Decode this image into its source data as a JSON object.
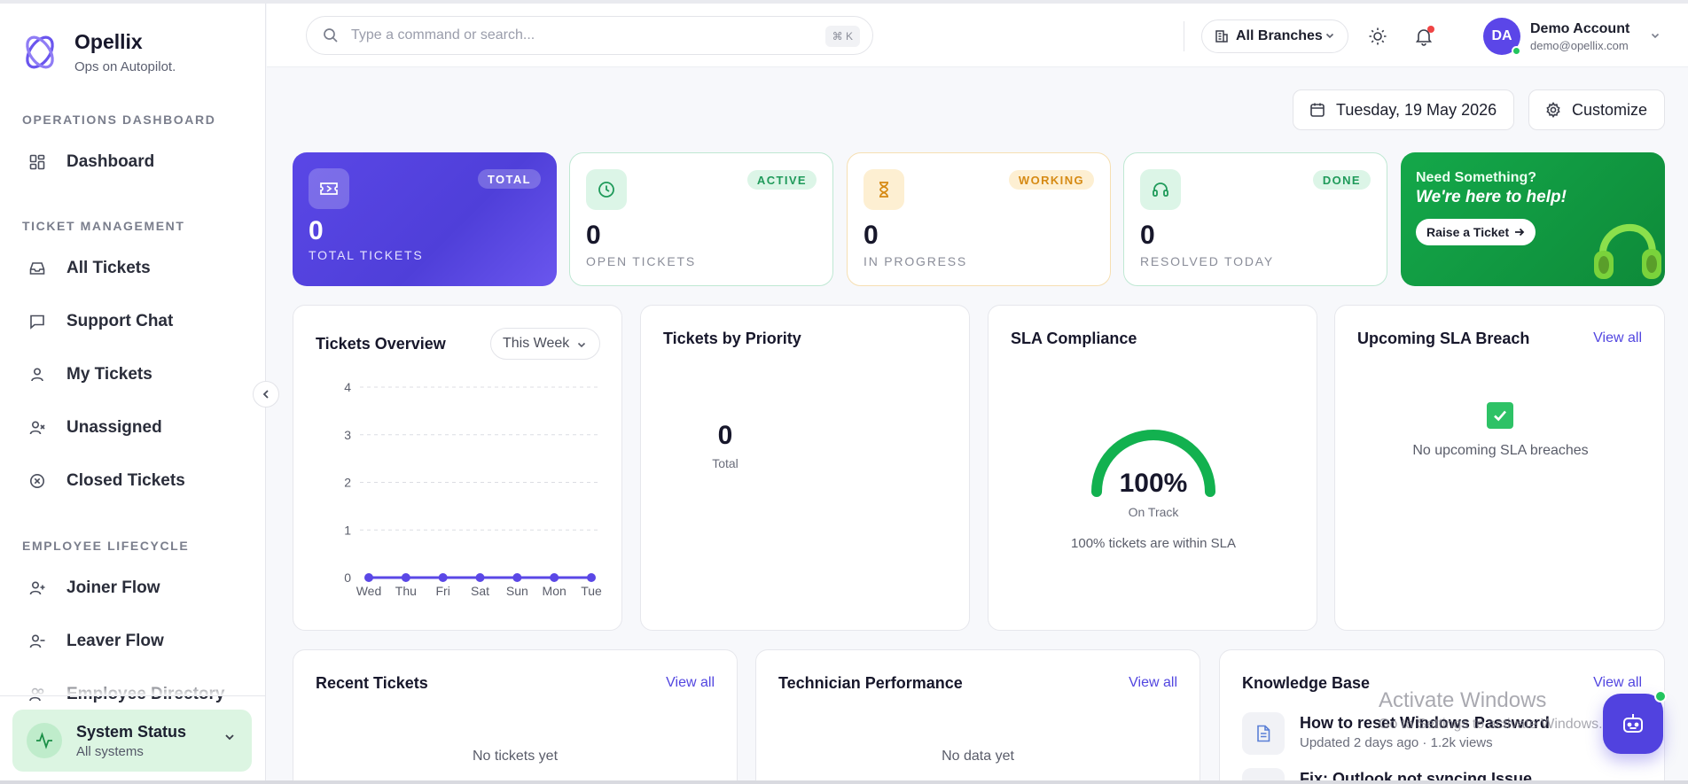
{
  "brand": {
    "name": "Opellix",
    "tagline": "Ops on Autopilot."
  },
  "sidebar": {
    "sections": [
      {
        "title": "OPERATIONS DASHBOARD"
      },
      {
        "title": "TICKET MANAGEMENT"
      },
      {
        "title": "EMPLOYEE LIFECYCLE"
      }
    ],
    "items": [
      {
        "label": "Dashboard",
        "icon": "grid-icon"
      },
      {
        "label": "All Tickets",
        "icon": "inbox-icon"
      },
      {
        "label": "Support Chat",
        "icon": "chat-icon"
      },
      {
        "label": "My Tickets",
        "icon": "user-icon"
      },
      {
        "label": "Unassigned",
        "icon": "user-x-icon"
      },
      {
        "label": "Closed Tickets",
        "icon": "x-circle-icon"
      },
      {
        "label": "Joiner Flow",
        "icon": "user-plus-icon"
      },
      {
        "label": "Leaver Flow",
        "icon": "user-minus-icon"
      },
      {
        "label": "Employee Directory",
        "icon": "users-icon"
      }
    ],
    "system_status": {
      "title": "System Status",
      "subtitle": "All systems"
    }
  },
  "topbar": {
    "search_placeholder": "Type a command or search...",
    "shortcut": "⌘ K",
    "branch": "All Branches",
    "account": {
      "initials": "DA",
      "name": "Demo Account",
      "email": "demo@opellix.com"
    }
  },
  "header": {
    "date": "Tuesday, 19 May 2026",
    "customize": "Customize"
  },
  "stats": [
    {
      "badge": "TOTAL",
      "value": "0",
      "caption": "TOTAL TICKETS"
    },
    {
      "badge": "ACTIVE",
      "value": "0",
      "caption": "OPEN TICKETS"
    },
    {
      "badge": "WORKING",
      "value": "0",
      "caption": "IN PROGRESS"
    },
    {
      "badge": "DONE",
      "value": "0",
      "caption": "RESOLVED TODAY"
    }
  ],
  "help": {
    "eyebrow": "Need Something?",
    "title": "We're here to help!",
    "cta": "Raise a Ticket"
  },
  "panels": {
    "overview": {
      "title": "Tickets Overview",
      "range": "This Week"
    },
    "priority": {
      "title": "Tickets by Priority",
      "total": "0",
      "total_label": "Total"
    },
    "sla": {
      "title": "SLA Compliance",
      "percent": "100%",
      "state": "On Track",
      "note": "100% tickets are within SLA",
      "value": 100
    },
    "breach": {
      "title": "Upcoming SLA Breach",
      "view_all": "View all",
      "empty": "No upcoming SLA breaches"
    },
    "recent": {
      "title": "Recent Tickets",
      "view_all": "View all",
      "empty": "No tickets yet"
    },
    "technician": {
      "title": "Technician Performance",
      "view_all": "View all",
      "empty": "No data yet"
    },
    "knowledge": {
      "title": "Knowledge Base",
      "view_all": "View all",
      "articles": [
        {
          "title": "How to reset Windows Password",
          "meta": "Updated 2 days ago · 1.2k views"
        },
        {
          "title": "Fix: Outlook not syncing Issue",
          "meta": ""
        }
      ]
    }
  },
  "chart_data": {
    "type": "line",
    "categories": [
      "Wed",
      "Thu",
      "Fri",
      "Sat",
      "Sun",
      "Mon",
      "Tue"
    ],
    "values": [
      0,
      0,
      0,
      0,
      0,
      0,
      0
    ],
    "ylim": [
      0,
      4
    ],
    "yticks": [
      0,
      1,
      2,
      3,
      4
    ],
    "grid": true,
    "color": "#5a47e6"
  },
  "watermark": {
    "line1": "Activate Windows",
    "line2": "Go to Settings to activate Windows."
  },
  "colors": {
    "accent": "#5a47e6",
    "success": "#14a84a",
    "warning": "#d68a14"
  }
}
